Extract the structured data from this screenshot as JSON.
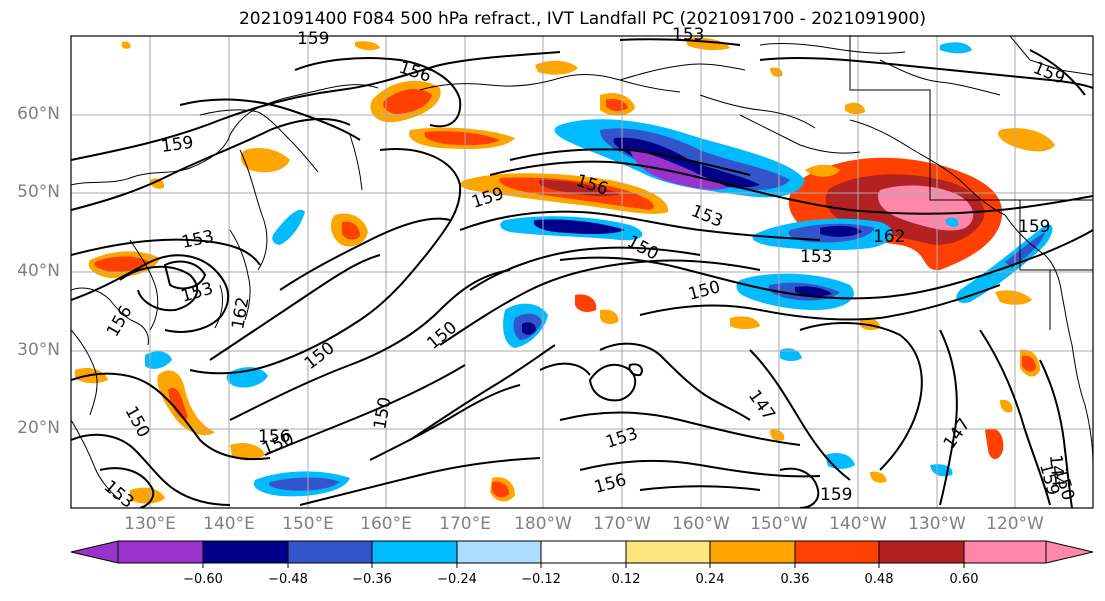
{
  "title": "2021091400 F084 500 hPa refract., IVT Landfall PC (2021091700 - 2021091900)",
  "lat_labels": [
    "60°N",
    "50°N",
    "40°N",
    "30°N",
    "20°N"
  ],
  "lon_labels": [
    "130°E",
    "140°E",
    "150°E",
    "160°E",
    "170°E",
    "180°W",
    "170°W",
    "160°W",
    "150°W",
    "140°W",
    "130°W",
    "120°W"
  ],
  "colorbar": {
    "labels": [
      "−0.60",
      "−0.48",
      "−0.36",
      "−0.24",
      "−0.12",
      "0.12",
      "0.24",
      "0.36",
      "0.48",
      "0.60"
    ],
    "colors": [
      "#9933cc",
      "#000088",
      "#3355cc",
      "#00bbff",
      "#aaddff",
      "#ffffff",
      "#ffe680",
      "#ffa500",
      "#ff4000",
      "#b22222",
      "#ff88aa"
    ]
  },
  "contour_labels": [
    "159",
    "156",
    "159",
    "159",
    "156",
    "153",
    "150",
    "159",
    "153",
    "162",
    "159",
    "153",
    "153",
    "150",
    "150",
    "150",
    "150",
    "147",
    "150",
    "156",
    "150",
    "153",
    "156",
    "159",
    "159",
    "147",
    "144",
    "150",
    "153",
    "156",
    "153",
    "162"
  ],
  "colors": {
    "land_line": "#000000",
    "grid": "#aaaaaa",
    "axis_text": "#808080"
  }
}
